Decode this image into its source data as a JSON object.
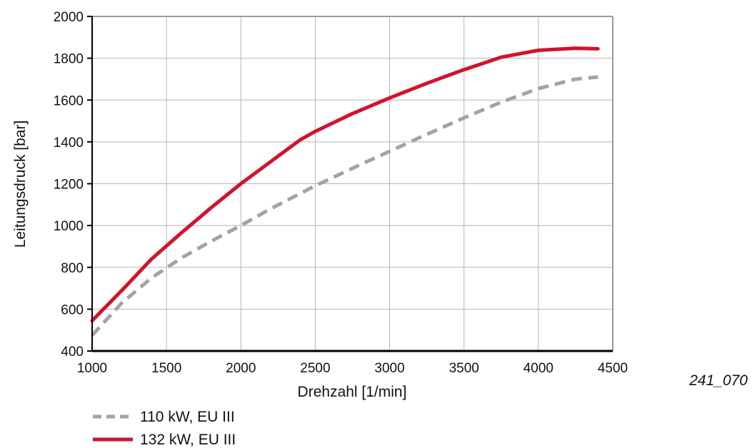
{
  "figure_id": "241_070",
  "chart_data": {
    "type": "line",
    "xlabel": "Drehzahl [1/min]",
    "ylabel": "Leitungsdruck [bar]",
    "xlim": [
      1000,
      4500
    ],
    "ylim": [
      400,
      2000
    ],
    "x_ticks": [
      1000,
      1500,
      2000,
      2500,
      3000,
      3500,
      4000,
      4500
    ],
    "y_ticks": [
      400,
      600,
      800,
      1000,
      1200,
      1400,
      1600,
      1800,
      2000
    ],
    "grid": true,
    "legend_position": "bottom-left",
    "series": [
      {
        "name": "110 kW, EU III",
        "color": "#a3a3a3",
        "style": "dashed",
        "x": [
          1000,
          1200,
          1400,
          1600,
          1800,
          2000,
          2200,
          2500,
          2800,
          3000,
          3200,
          3500,
          3750,
          4000,
          4250,
          4400
        ],
        "y": [
          475,
          630,
          750,
          845,
          925,
          1000,
          1080,
          1190,
          1290,
          1355,
          1420,
          1515,
          1590,
          1655,
          1700,
          1710
        ]
      },
      {
        "name": "132 kW, EU III",
        "color": "#d2122e",
        "style": "solid",
        "x": [
          1000,
          1200,
          1400,
          1600,
          1800,
          2000,
          2200,
          2400,
          2500,
          2750,
          3000,
          3250,
          3500,
          3750,
          4000,
          4250,
          4400
        ],
        "y": [
          545,
          690,
          840,
          965,
          1085,
          1200,
          1305,
          1410,
          1450,
          1535,
          1610,
          1680,
          1745,
          1805,
          1838,
          1848,
          1845
        ]
      }
    ]
  }
}
